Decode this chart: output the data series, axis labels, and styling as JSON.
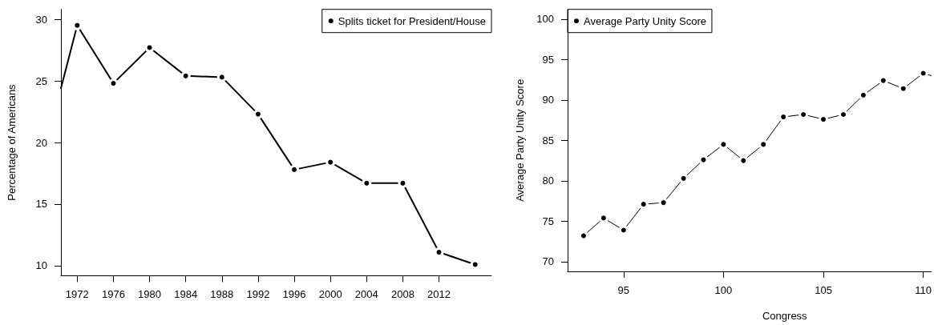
{
  "chart_data": [
    {
      "type": "line",
      "ylabel": "Percentage of Americans",
      "x": [
        1970.2,
        1972,
        1976,
        1980,
        1984,
        1988,
        1992,
        1996,
        2000,
        2004,
        2008,
        2012,
        2016
      ],
      "series": [
        {
          "name": "Splits ticket for President/House",
          "color": "#000000",
          "values": [
            24.4,
            29.5,
            24.8,
            27.7,
            25.4,
            25.3,
            22.3,
            17.8,
            18.4,
            16.7,
            16.7,
            11.1,
            10.1
          ]
        }
      ],
      "xlim": [
        1970.2,
        2017.8
      ],
      "ylim": [
        9.2,
        30.8
      ],
      "xticks": [
        1972,
        1976,
        1980,
        1984,
        1988,
        1992,
        1996,
        2000,
        2004,
        2008,
        2012
      ],
      "yticks": [
        10,
        15,
        20,
        25,
        30
      ],
      "legend": "top right",
      "marker": "circle",
      "line_style": "solid"
    },
    {
      "type": "line",
      "xlabel": "Congress",
      "ylabel": "Average Party Unity Score",
      "x": [
        93,
        94,
        95,
        96,
        97,
        98,
        99,
        100,
        101,
        102,
        103,
        104,
        105,
        106,
        107,
        108,
        109,
        110,
        110.4
      ],
      "series": [
        {
          "name": "Average Party Unity Score",
          "color": "#000000",
          "values": [
            73.2,
            75.4,
            73.9,
            77.1,
            77.3,
            80.3,
            82.6,
            84.5,
            82.5,
            84.5,
            87.9,
            88.2,
            87.6,
            88.2,
            90.6,
            92.4,
            91.4,
            93.3,
            93.0
          ]
        }
      ],
      "xlim": [
        92.2,
        110.4
      ],
      "ylim": [
        68.8,
        101.2
      ],
      "xticks": [
        95,
        100,
        105,
        110
      ],
      "yticks": [
        70,
        75,
        80,
        85,
        90,
        95,
        100
      ],
      "legend": "top left",
      "marker": "circle",
      "line_style": "solid"
    }
  ]
}
